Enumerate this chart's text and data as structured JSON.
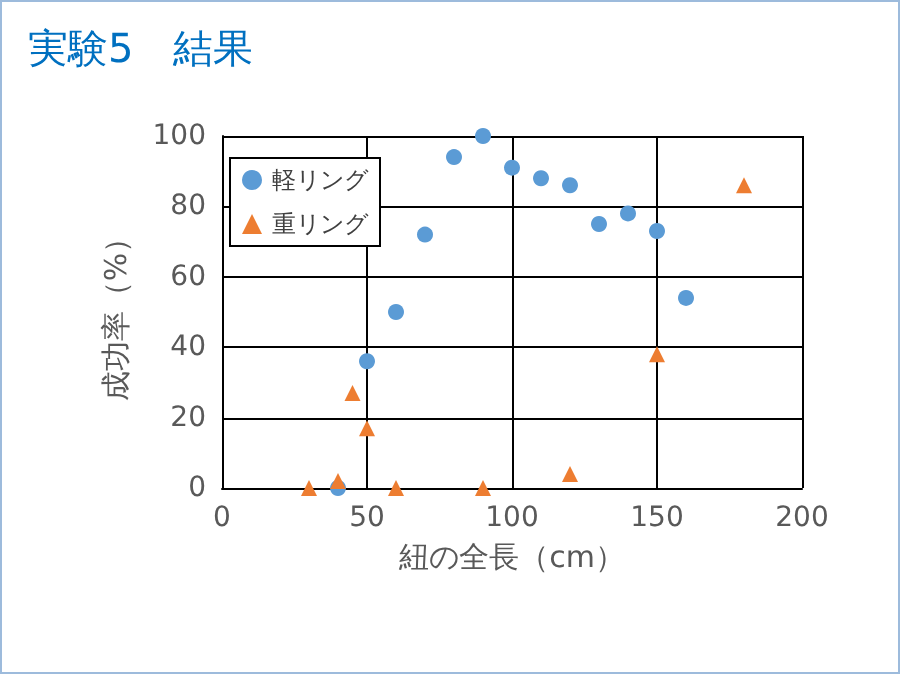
{
  "chart_data": {
    "type": "scatter",
    "title": "実験5　結果",
    "xlabel": "紐の全長（cm）",
    "ylabel": "成功率（%）",
    "series": [
      {
        "name": "軽リング",
        "color": "#5b9bd5",
        "marker": "circle",
        "x": [
          40,
          50,
          60,
          70,
          80,
          90,
          100,
          110,
          120,
          130,
          140,
          150,
          160
        ],
        "values": [
          0,
          36,
          50,
          72,
          94,
          100,
          91,
          88,
          86,
          75,
          78,
          73,
          54
        ]
      },
      {
        "name": "重リング",
        "color": "#ed7d31",
        "marker": "triangle",
        "x": [
          30,
          40,
          45,
          50,
          60,
          90,
          120,
          150,
          180
        ],
        "values": [
          0,
          2,
          27,
          17,
          0,
          0,
          4,
          38,
          86
        ]
      }
    ],
    "xlim": [
      0,
      200
    ],
    "xticks": [
      0,
      50,
      100,
      150,
      200
    ],
    "ylim": [
      0,
      100
    ],
    "yticks": [
      0,
      20,
      40,
      60,
      80,
      100
    ],
    "grid": true,
    "legend": "top left"
  }
}
